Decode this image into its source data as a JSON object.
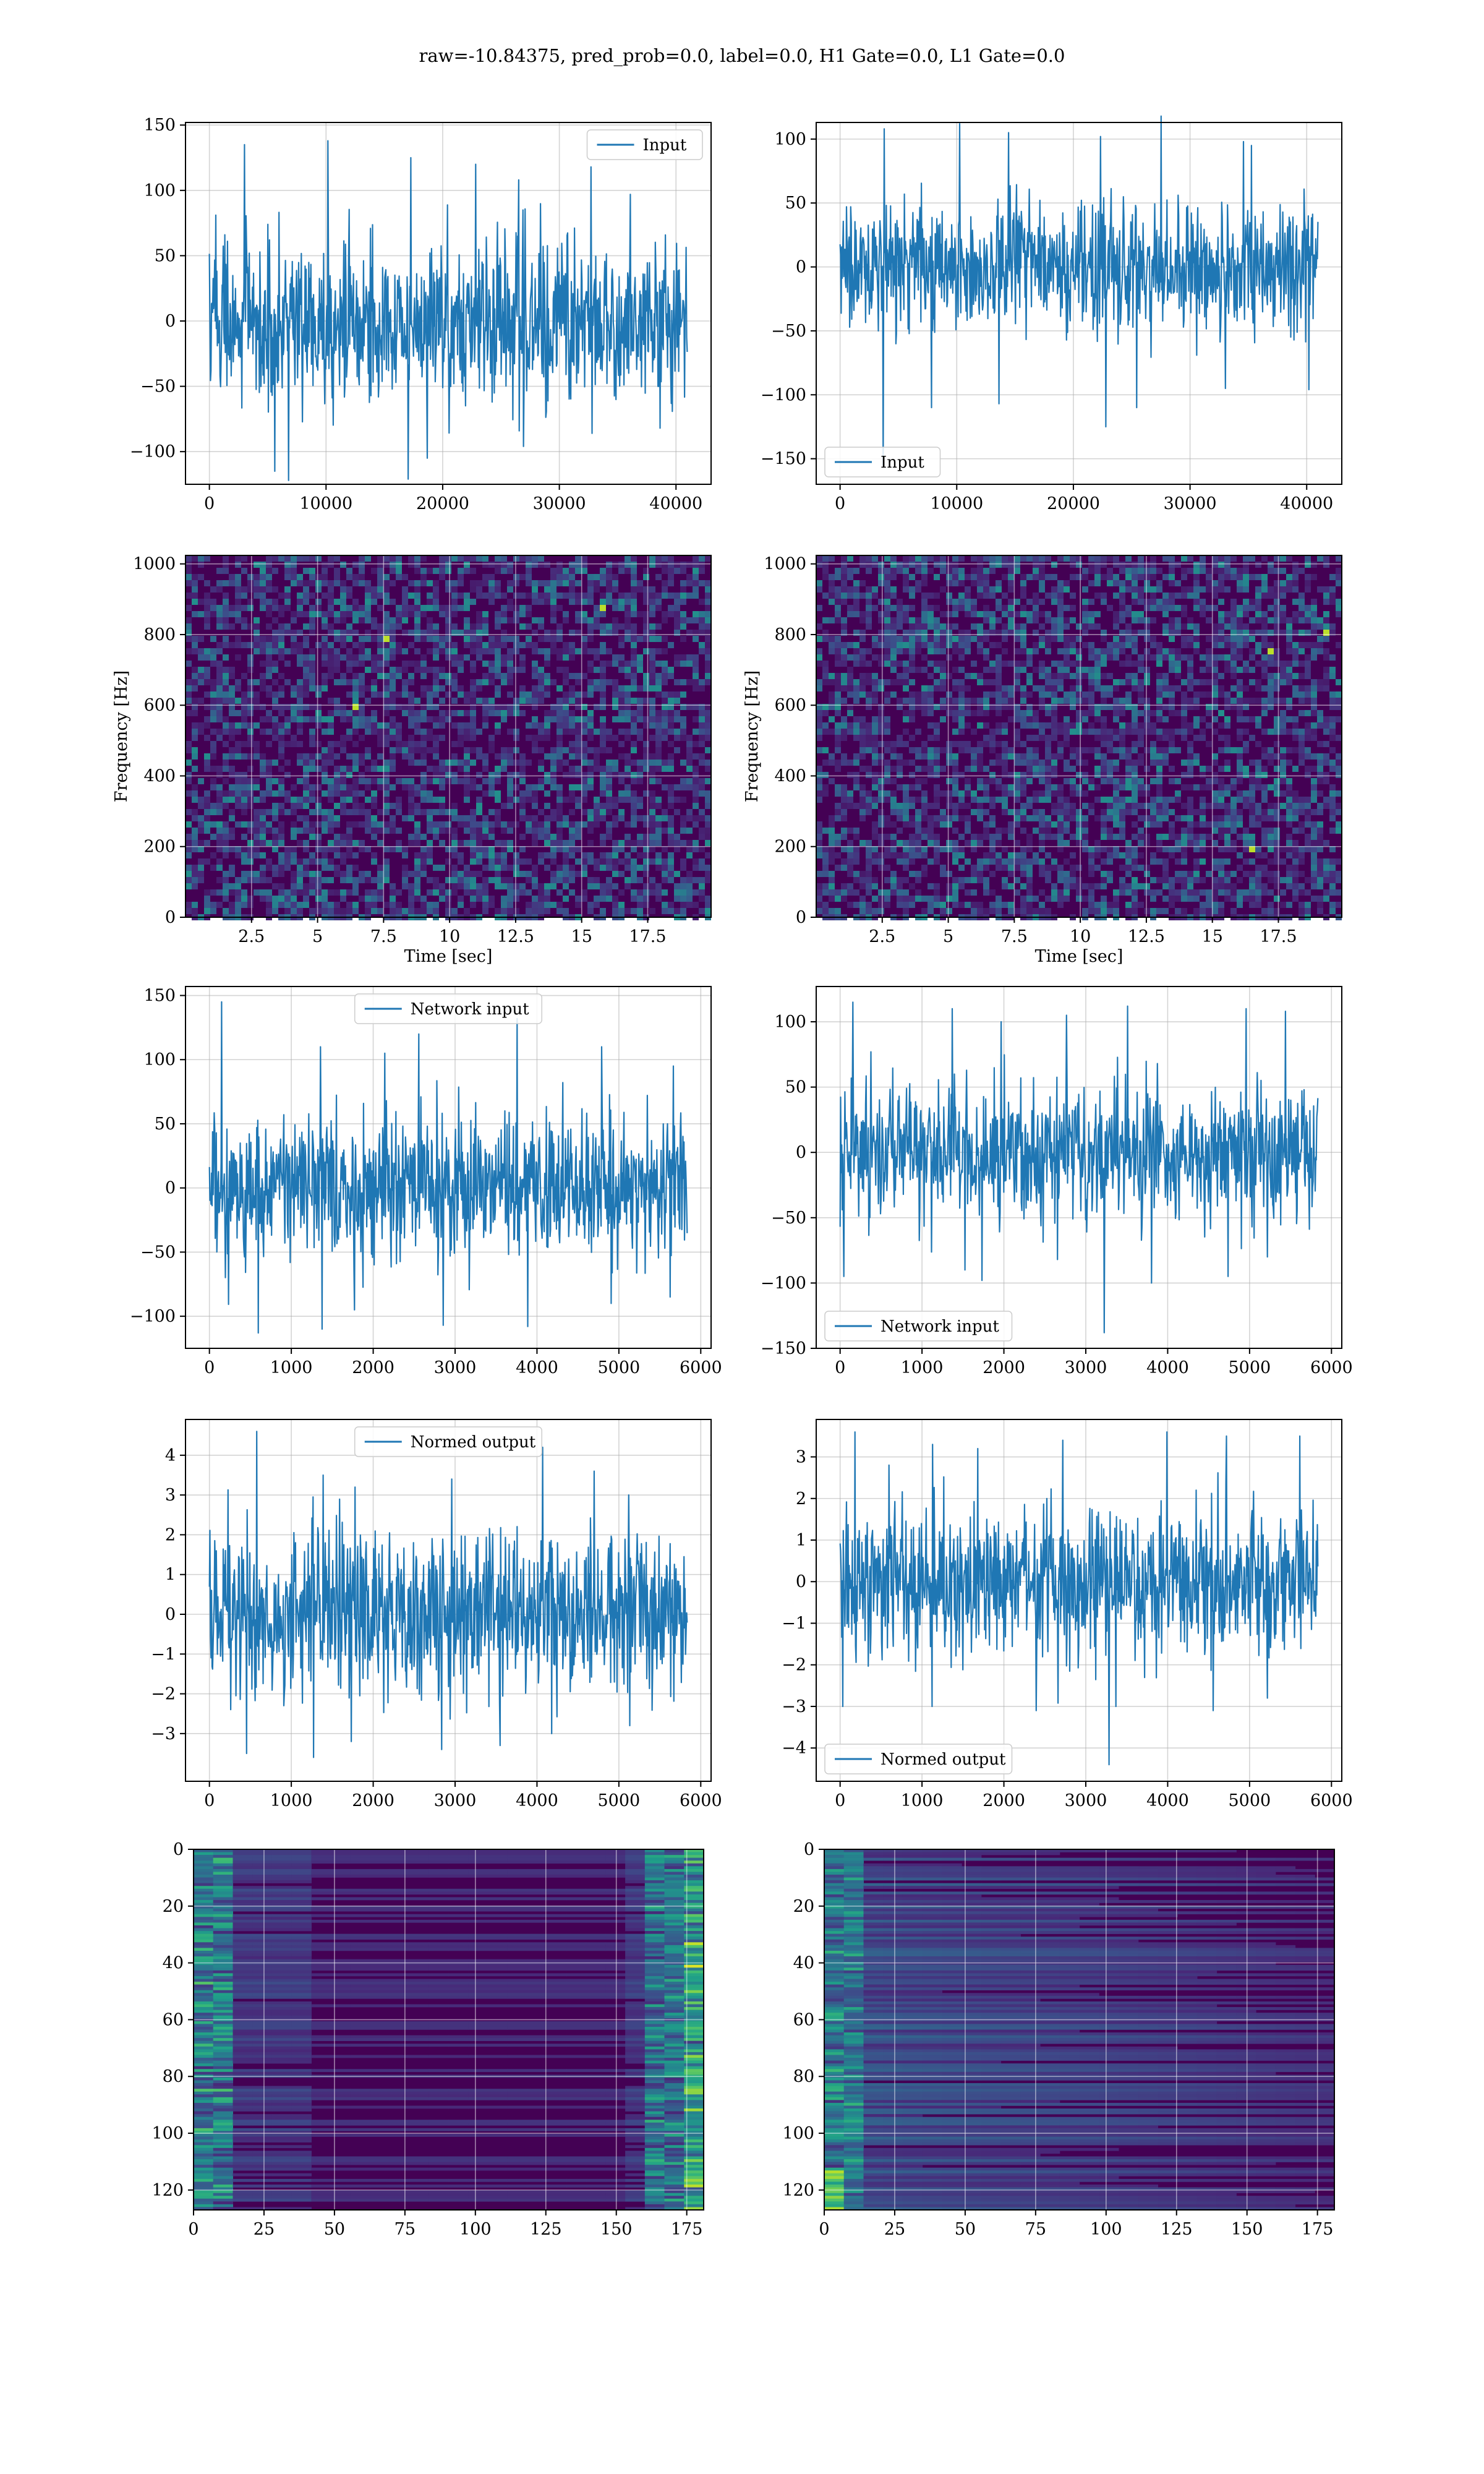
{
  "figure": {
    "suptitle": "raw=-10.84375, pred_prob=0.0, label=0.0, H1 Gate=0.0, L1 Gate=0.0"
  },
  "colors": {
    "line": "#1f77b4",
    "grid": "#b0b0b0",
    "viridis_low": "#440154",
    "viridis_mid": "#21918c",
    "viridis_high": "#fde725"
  },
  "chart_data": [
    {
      "id": "h1-input",
      "type": "line",
      "legend": "upper right",
      "series": [
        {
          "name": "Input",
          "envelope_top": [
            135,
            138,
            125,
            120,
            108,
            118,
            97
          ],
          "envelope_bottom": [
            -115,
            -122,
            -121,
            -105,
            -96,
            -86,
            -82
          ]
        }
      ],
      "x_range": [
        0,
        40960
      ],
      "xlim": [
        -2048,
        43008
      ],
      "ylim": [
        -125,
        152
      ],
      "xticks": [
        0,
        10000,
        20000,
        30000,
        40000
      ],
      "yticks": [
        -100,
        -50,
        0,
        50,
        100,
        150
      ],
      "noise_sigma": 30,
      "grid": true
    },
    {
      "id": "l1-input",
      "type": "line",
      "legend": "lower left",
      "series": [
        {
          "name": "Input",
          "envelope_top": [
            108,
            112,
            105,
            102,
            118,
            98,
            95
          ],
          "envelope_bottom": [
            -155,
            -110,
            -107,
            -125,
            -110,
            -95,
            -96
          ]
        }
      ],
      "x_range": [
        0,
        40960
      ],
      "xlim": [
        -2048,
        43008
      ],
      "ylim": [
        -170,
        113
      ],
      "xticks": [
        0,
        10000,
        20000,
        30000,
        40000
      ],
      "yticks": [
        -150,
        -100,
        -50,
        0,
        50,
        100
      ],
      "noise_sigma": 25,
      "grid": true
    },
    {
      "id": "h1-spectrogram",
      "type": "heatmap",
      "xlabel": "Time [sec]",
      "ylabel": "Frequency [Hz]",
      "xlim": [
        0,
        19.9
      ],
      "ylim": [
        0,
        1024
      ],
      "xticks": [
        2.5,
        5.0,
        7.5,
        10.0,
        12.5,
        15.0,
        17.5
      ],
      "yticks": [
        0,
        200,
        400,
        600,
        800,
        1000
      ],
      "colormap": "viridis",
      "grid": true
    },
    {
      "id": "l1-spectrogram",
      "type": "heatmap",
      "xlabel": "Time [sec]",
      "ylabel": "Frequency [Hz]",
      "xlim": [
        0,
        19.9
      ],
      "ylim": [
        0,
        1024
      ],
      "xticks": [
        2.5,
        5.0,
        7.5,
        10.0,
        12.5,
        15.0,
        17.5
      ],
      "yticks": [
        0,
        200,
        400,
        600,
        800,
        1000
      ],
      "colormap": "viridis",
      "grid": true
    },
    {
      "id": "h1-network-input",
      "type": "line",
      "legend": "upper center",
      "series": [
        {
          "name": "Network input",
          "envelope_top": [
            145,
            110,
            105,
            120,
            132,
            110,
            95
          ],
          "envelope_bottom": [
            -113,
            -110,
            -95,
            -107,
            -108,
            -90,
            -85
          ]
        }
      ],
      "x_range": [
        0,
        5834
      ],
      "xlim": [
        -292,
        6126
      ],
      "ylim": [
        -125,
        157
      ],
      "xticks": [
        0,
        1000,
        2000,
        3000,
        4000,
        5000,
        6000
      ],
      "yticks": [
        -100,
        -50,
        0,
        50,
        100,
        150
      ],
      "noise_sigma": 28,
      "grid": true
    },
    {
      "id": "l1-network-input",
      "type": "line",
      "legend": "lower left",
      "series": [
        {
          "name": "Network input",
          "envelope_top": [
            115,
            110,
            100,
            105,
            112,
            110,
            108
          ],
          "envelope_bottom": [
            -95,
            -90,
            -98,
            -138,
            -100,
            -95,
            -80
          ]
        }
      ],
      "x_range": [
        0,
        5834
      ],
      "xlim": [
        -292,
        6126
      ],
      "ylim": [
        -150,
        127
      ],
      "xticks": [
        0,
        1000,
        2000,
        3000,
        4000,
        5000,
        6000
      ],
      "yticks": [
        -150,
        -100,
        -50,
        0,
        50,
        100
      ],
      "noise_sigma": 25,
      "grid": true
    },
    {
      "id": "h1-normed-output",
      "type": "line",
      "legend": "upper center",
      "series": [
        {
          "name": "Normed output",
          "envelope_top": [
            4.6,
            3.5,
            3.2,
            3.4,
            4.2,
            3.6,
            3.0
          ],
          "envelope_bottom": [
            -3.5,
            -3.6,
            -3.2,
            -3.4,
            -3.3,
            -3.0,
            -2.8
          ]
        }
      ],
      "x_range": [
        0,
        5834
      ],
      "xlim": [
        -292,
        6126
      ],
      "ylim": [
        -4.2,
        4.9
      ],
      "xticks": [
        0,
        1000,
        2000,
        3000,
        4000,
        5000,
        6000
      ],
      "yticks": [
        -3,
        -2,
        -1,
        0,
        1,
        2,
        3,
        4
      ],
      "noise_sigma": 1,
      "grid": true
    },
    {
      "id": "l1-normed-output",
      "type": "line",
      "legend": "lower left",
      "series": [
        {
          "name": "Normed output",
          "envelope_top": [
            3.6,
            3.3,
            3.2,
            3.4,
            3.6,
            3.5,
            3.5
          ],
          "envelope_bottom": [
            -3.0,
            -3.0,
            -3.1,
            -4.4,
            -3.0,
            -3.1,
            -2.8
          ]
        }
      ],
      "x_range": [
        0,
        5834
      ],
      "xlim": [
        -292,
        6126
      ],
      "ylim": [
        -4.8,
        3.9
      ],
      "xticks": [
        0,
        1000,
        2000,
        3000,
        4000,
        5000,
        6000
      ],
      "yticks": [
        -4,
        -3,
        -2,
        -1,
        0,
        1,
        2,
        3
      ],
      "noise_sigma": 0.9,
      "grid": true
    },
    {
      "id": "h1-features",
      "type": "heatmap",
      "rows": 128,
      "cols": 182,
      "xlim": [
        0,
        181
      ],
      "ylim": [
        127,
        0
      ],
      "xticks": [
        0,
        25,
        50,
        75,
        100,
        125,
        150,
        175
      ],
      "yticks": [
        0,
        20,
        40,
        60,
        80,
        100,
        120
      ],
      "colormap": "viridis",
      "grid": true
    },
    {
      "id": "l1-features",
      "type": "heatmap",
      "rows": 128,
      "cols": 182,
      "xlim": [
        0,
        181
      ],
      "ylim": [
        127,
        0
      ],
      "xticks": [
        0,
        25,
        50,
        75,
        100,
        125,
        150,
        175
      ],
      "yticks": [
        0,
        20,
        40,
        60,
        80,
        100,
        120
      ],
      "colormap": "viridis",
      "grid": true
    }
  ]
}
